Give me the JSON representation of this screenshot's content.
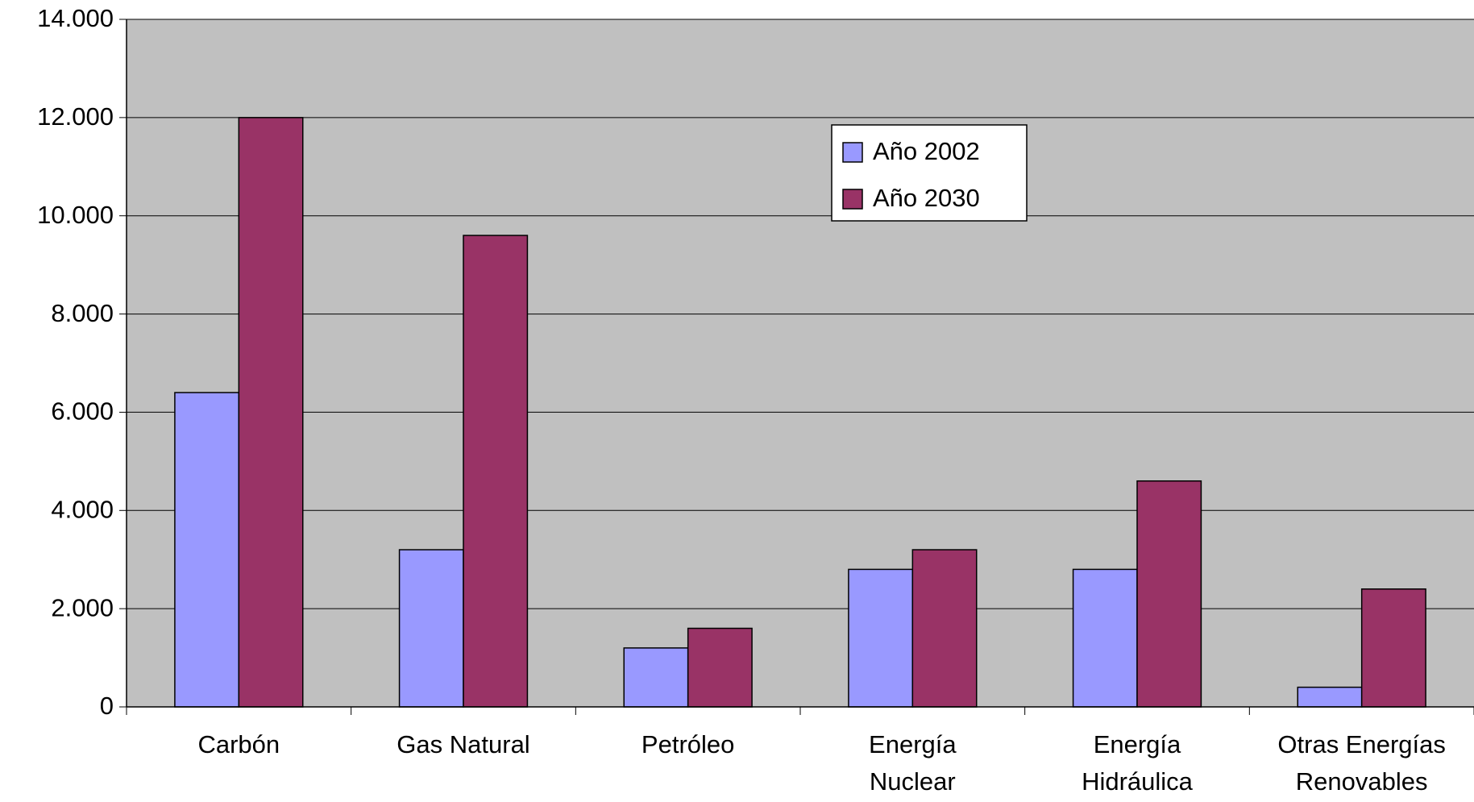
{
  "chart_data": {
    "type": "bar",
    "categories": [
      "Carbón",
      "Gas Natural",
      "Petróleo",
      "Energía Nuclear",
      "Energía Hidráulica",
      "Otras Energías Renovables"
    ],
    "series": [
      {
        "name": "Año 2002",
        "color": "#9999ff",
        "values": [
          6400,
          3200,
          1200,
          2800,
          2800,
          400
        ]
      },
      {
        "name": "Año 2030",
        "color": "#993366",
        "values": [
          12000,
          9600,
          1600,
          3200,
          4600,
          2400
        ]
      }
    ],
    "ylim": [
      0,
      14000
    ],
    "yticks": [
      0,
      {
        "value": 2000,
        "label": "2.000"
      },
      {
        "value": 4000,
        "label": "4.000"
      },
      {
        "value": 6000,
        "label": "6.000"
      },
      {
        "value": 8000,
        "label": "8.000"
      },
      {
        "value": 10000,
        "label": "10.000"
      },
      {
        "value": 12000,
        "label": "12.000"
      },
      {
        "value": 14000,
        "label": "14.000"
      }
    ],
    "grid": true,
    "plot_background": "#c0c0c0"
  }
}
